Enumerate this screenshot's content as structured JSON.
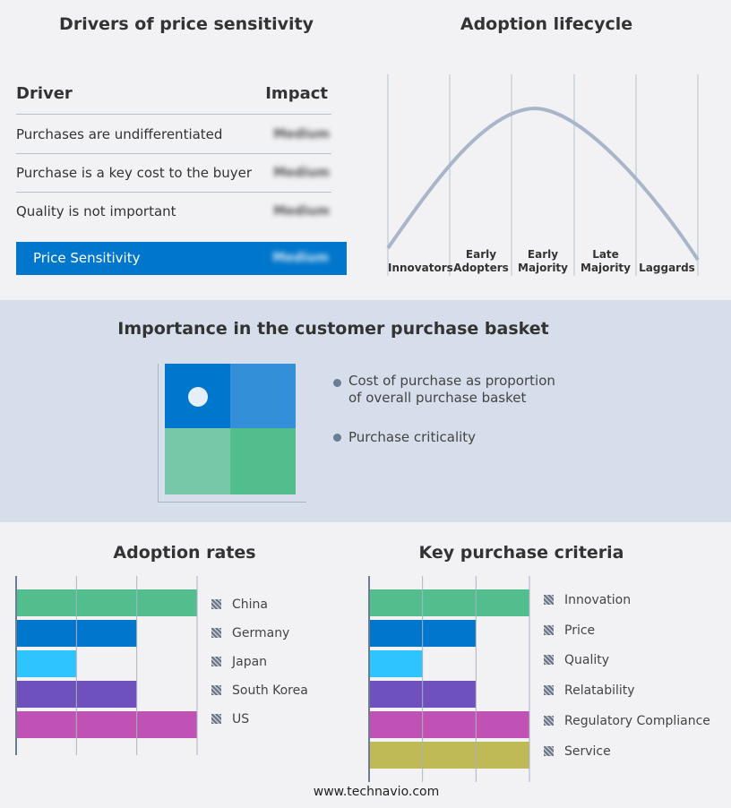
{
  "drivers": {
    "title": "Drivers of price sensitivity",
    "col_driver": "Driver",
    "col_impact": "Impact",
    "rows": [
      {
        "driver": "Purchases are undifferentiated",
        "impact": "Medium"
      },
      {
        "driver": "Purchase is a key cost to the buyer",
        "impact": "Medium"
      },
      {
        "driver": "Quality is not important",
        "impact": "Medium"
      }
    ],
    "summary": {
      "label": "Price Sensitivity",
      "impact": "Medium",
      "color": "#0077cc"
    }
  },
  "lifecycle": {
    "title": "Adoption lifecycle",
    "stages": [
      "Innovators",
      "Early Adopters",
      "Early Majority",
      "Late Majority",
      "Laggards"
    ],
    "curve_color": "#a9b6c9"
  },
  "basket": {
    "title": "Importance in the customer purchase basket",
    "legend": [
      "Cost of purchase as proportion of overall purchase basket",
      "Purchase criticality"
    ],
    "quadrant_colors": [
      "#0077cc",
      "#3390d8",
      "#76c8a8",
      "#52be8e"
    ],
    "marker_quadrant": "top-left"
  },
  "chart_data": [
    {
      "type": "bar",
      "title": "Adoption rates",
      "orientation": "horizontal",
      "categories": [
        "China",
        "Germany",
        "Japan",
        "South Korea",
        "US"
      ],
      "values": [
        3,
        2,
        1,
        2,
        3
      ],
      "xlim": [
        0,
        3
      ],
      "colors": [
        "#52be8e",
        "#0077cc",
        "#2ec4ff",
        "#6e51bd",
        "#c052b5"
      ],
      "grid": true,
      "legend": "right"
    },
    {
      "type": "bar",
      "title": "Key purchase criteria",
      "orientation": "horizontal",
      "categories": [
        "Innovation",
        "Price",
        "Quality",
        "Relatability",
        "Regulatory Compliance",
        "Service"
      ],
      "values": [
        3,
        2,
        1,
        2,
        3,
        3
      ],
      "xlim": [
        0,
        3
      ],
      "colors": [
        "#52be8e",
        "#0077cc",
        "#2ec4ff",
        "#6e51bd",
        "#c052b5",
        "#bfba55"
      ],
      "grid": true,
      "legend": "right"
    }
  ],
  "footer": "www.technavio.com"
}
